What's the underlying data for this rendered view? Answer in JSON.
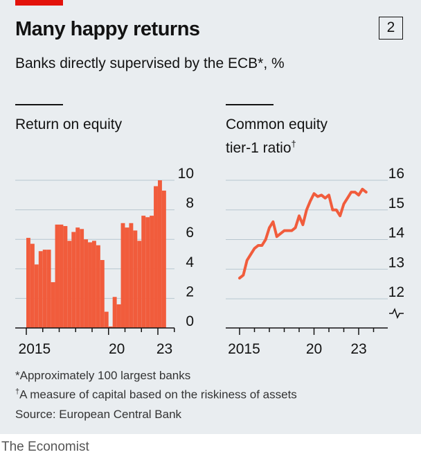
{
  "header": {
    "title": "Many happy returns",
    "chart_number": "2",
    "subtitle": "Banks directly supervised by the ECB*, %"
  },
  "footnotes": {
    "note1": "*Approximately 100 largest banks",
    "note2_mark": "†",
    "note2": "A measure of capital based on the riskiness of assets",
    "source": "Source: European Central Bank"
  },
  "brand": "The Economist",
  "colors": {
    "accent": "#e3120b",
    "series": "#f15c3c",
    "gridline": "#b7c6cf",
    "background": "#e9edf0"
  },
  "chart_data": [
    {
      "type": "bar",
      "title": "Return on equity",
      "x_tick_labels": [
        "2015",
        "20",
        "23"
      ],
      "y_ticks": [
        0,
        2,
        4,
        6,
        8,
        10
      ],
      "ylim": [
        0,
        10
      ],
      "grid": true,
      "x": [
        2015.0,
        2015.25,
        2015.5,
        2015.75,
        2016.0,
        2016.25,
        2016.5,
        2016.75,
        2017.0,
        2017.25,
        2017.5,
        2017.75,
        2018.0,
        2018.25,
        2018.5,
        2018.75,
        2019.0,
        2019.25,
        2019.5,
        2019.75,
        2020.0,
        2020.25,
        2020.5,
        2020.75,
        2021.0,
        2021.25,
        2021.5,
        2021.75,
        2022.0,
        2022.25,
        2022.5,
        2022.75,
        2023.0,
        2023.25
      ],
      "values": [
        6.1,
        5.7,
        4.3,
        5.2,
        5.3,
        5.3,
        3.1,
        7.0,
        7.0,
        6.9,
        5.9,
        6.5,
        6.8,
        6.7,
        6.0,
        5.8,
        5.9,
        5.6,
        4.6,
        1.1,
        0.1,
        2.1,
        1.6,
        7.1,
        6.8,
        7.1,
        6.6,
        5.9,
        7.6,
        7.5,
        7.6,
        9.6,
        10.0,
        9.3
      ]
    },
    {
      "type": "line",
      "title_line1": "Common equity",
      "title_line2": "tier-1 ratio",
      "title_mark": "†",
      "x_tick_labels": [
        "2015",
        "20",
        "23"
      ],
      "y_ticks": [
        12,
        13,
        14,
        15,
        16
      ],
      "ylim": [
        11.8,
        16
      ],
      "axis_break": true,
      "grid": true,
      "x": [
        2015.0,
        2015.25,
        2015.5,
        2015.75,
        2016.0,
        2016.25,
        2016.5,
        2016.75,
        2017.0,
        2017.25,
        2017.5,
        2017.75,
        2018.0,
        2018.25,
        2018.5,
        2018.75,
        2019.0,
        2019.25,
        2019.5,
        2019.75,
        2020.0,
        2020.25,
        2020.5,
        2020.75,
        2021.0,
        2021.25,
        2021.5,
        2021.75,
        2022.0,
        2022.25,
        2022.5,
        2022.75,
        2023.0,
        2023.25,
        2023.5
      ],
      "values": [
        12.7,
        12.8,
        13.3,
        13.5,
        13.7,
        13.8,
        13.8,
        14.0,
        14.4,
        14.6,
        14.1,
        14.2,
        14.3,
        14.3,
        14.3,
        14.4,
        14.8,
        14.5,
        15.0,
        15.3,
        15.55,
        15.45,
        15.5,
        15.4,
        15.5,
        15.0,
        15.0,
        14.8,
        15.2,
        15.4,
        15.6,
        15.6,
        15.5,
        15.7,
        15.6
      ]
    }
  ]
}
